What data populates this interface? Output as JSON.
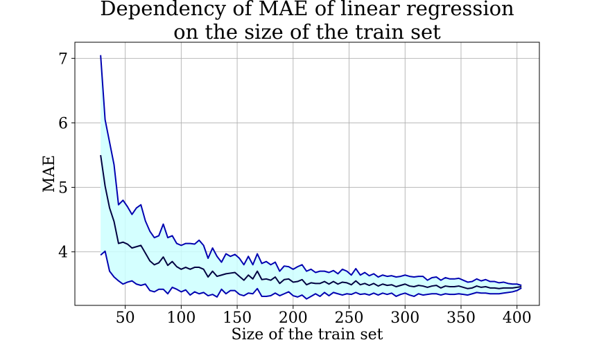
{
  "chart_data": {
    "type": "line",
    "title_lines": [
      "Dependency of MAE of linear regression",
      "on the size of the train set"
    ],
    "xlabel": "Size of the train set",
    "ylabel": "MAE",
    "xlim": [
      5,
      420
    ],
    "ylim": [
      3.17,
      7.25
    ],
    "xticks": [
      50,
      100,
      150,
      200,
      250,
      300,
      350,
      400
    ],
    "yticks": [
      4,
      5,
      6,
      7
    ],
    "grid": true,
    "legend": "none",
    "colors": {
      "upper": "#0000b0",
      "mean": "#000040",
      "lower": "#0000b0",
      "band": "#ccffff"
    },
    "x": [
      28,
      32,
      36,
      40,
      44,
      48,
      52,
      56,
      60,
      64,
      68,
      72,
      76,
      80,
      84,
      88,
      92,
      96,
      100,
      104,
      108,
      112,
      116,
      120,
      124,
      128,
      132,
      136,
      140,
      144,
      148,
      152,
      156,
      160,
      164,
      168,
      172,
      176,
      180,
      184,
      188,
      192,
      196,
      200,
      204,
      208,
      212,
      216,
      220,
      224,
      228,
      232,
      236,
      240,
      244,
      248,
      252,
      256,
      260,
      264,
      268,
      272,
      276,
      280,
      284,
      288,
      292,
      296,
      300,
      304,
      308,
      312,
      316,
      320,
      324,
      328,
      332,
      336,
      340,
      344,
      348,
      352,
      356,
      360,
      364,
      368,
      372,
      376,
      380,
      384,
      388,
      392,
      396,
      400,
      404
    ],
    "series": [
      {
        "key": "upper",
        "values": [
          7.05,
          6.05,
          5.7,
          5.35,
          4.73,
          4.8,
          4.7,
          4.58,
          4.68,
          4.73,
          4.48,
          4.32,
          4.22,
          4.25,
          4.43,
          4.22,
          4.25,
          4.13,
          4.1,
          4.13,
          4.13,
          4.12,
          4.18,
          4.1,
          3.9,
          4.06,
          3.93,
          3.84,
          3.97,
          3.93,
          3.96,
          3.9,
          3.8,
          3.93,
          3.8,
          3.97,
          3.82,
          3.85,
          3.8,
          3.84,
          3.7,
          3.78,
          3.77,
          3.73,
          3.77,
          3.8,
          3.7,
          3.73,
          3.68,
          3.7,
          3.7,
          3.68,
          3.71,
          3.66,
          3.73,
          3.7,
          3.64,
          3.74,
          3.64,
          3.68,
          3.63,
          3.66,
          3.61,
          3.64,
          3.62,
          3.63,
          3.61,
          3.62,
          3.64,
          3.62,
          3.61,
          3.62,
          3.62,
          3.56,
          3.6,
          3.61,
          3.56,
          3.6,
          3.58,
          3.58,
          3.59,
          3.56,
          3.53,
          3.54,
          3.58,
          3.55,
          3.57,
          3.54,
          3.54,
          3.52,
          3.53,
          3.51,
          3.5,
          3.5,
          3.48
        ]
      },
      {
        "key": "mean",
        "values": [
          5.5,
          5.02,
          4.68,
          4.47,
          4.13,
          4.15,
          4.12,
          4.06,
          4.08,
          4.1,
          3.98,
          3.86,
          3.8,
          3.83,
          3.92,
          3.79,
          3.85,
          3.77,
          3.73,
          3.76,
          3.73,
          3.76,
          3.76,
          3.73,
          3.61,
          3.7,
          3.62,
          3.64,
          3.66,
          3.67,
          3.68,
          3.62,
          3.56,
          3.64,
          3.58,
          3.7,
          3.57,
          3.58,
          3.56,
          3.61,
          3.51,
          3.57,
          3.58,
          3.53,
          3.54,
          3.57,
          3.49,
          3.52,
          3.51,
          3.51,
          3.54,
          3.5,
          3.54,
          3.5,
          3.53,
          3.52,
          3.49,
          3.55,
          3.49,
          3.51,
          3.48,
          3.51,
          3.47,
          3.5,
          3.48,
          3.49,
          3.46,
          3.48,
          3.5,
          3.47,
          3.46,
          3.48,
          3.47,
          3.45,
          3.47,
          3.48,
          3.44,
          3.47,
          3.46,
          3.46,
          3.47,
          3.45,
          3.43,
          3.44,
          3.47,
          3.45,
          3.46,
          3.44,
          3.44,
          3.43,
          3.44,
          3.44,
          3.44,
          3.45,
          3.46
        ]
      },
      {
        "key": "lower",
        "values": [
          3.95,
          4.01,
          3.7,
          3.61,
          3.55,
          3.5,
          3.53,
          3.55,
          3.5,
          3.48,
          3.5,
          3.4,
          3.38,
          3.42,
          3.42,
          3.35,
          3.45,
          3.42,
          3.38,
          3.41,
          3.33,
          3.38,
          3.35,
          3.37,
          3.32,
          3.34,
          3.3,
          3.42,
          3.35,
          3.4,
          3.4,
          3.34,
          3.32,
          3.36,
          3.35,
          3.43,
          3.31,
          3.31,
          3.32,
          3.36,
          3.32,
          3.35,
          3.38,
          3.32,
          3.3,
          3.33,
          3.27,
          3.31,
          3.35,
          3.31,
          3.37,
          3.32,
          3.37,
          3.35,
          3.33,
          3.35,
          3.34,
          3.37,
          3.34,
          3.35,
          3.33,
          3.36,
          3.33,
          3.36,
          3.34,
          3.36,
          3.31,
          3.34,
          3.36,
          3.33,
          3.31,
          3.35,
          3.33,
          3.34,
          3.35,
          3.35,
          3.33,
          3.35,
          3.34,
          3.34,
          3.35,
          3.34,
          3.33,
          3.35,
          3.37,
          3.36,
          3.36,
          3.35,
          3.35,
          3.35,
          3.36,
          3.37,
          3.38,
          3.4,
          3.44
        ]
      }
    ]
  }
}
